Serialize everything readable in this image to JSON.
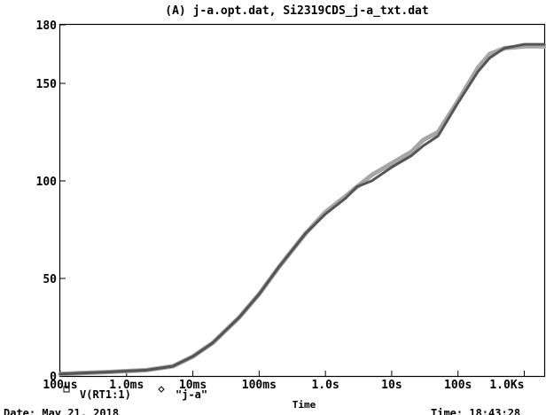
{
  "window": {
    "date_label": "Date: May 21, 2018",
    "time_label": "Time: 18:43:28"
  },
  "chart_data": {
    "type": "line",
    "title": "(A) j-a.opt.dat, Si2319CDS_j-a_txt.dat",
    "xlabel": "Time",
    "ylabel": "",
    "xscale": "log",
    "xlim_seconds": [
      0.0001,
      2000
    ],
    "ylim": [
      0,
      180
    ],
    "x_tick_values": [
      0.0001,
      0.001,
      0.01,
      0.1,
      1,
      10,
      100,
      1000
    ],
    "x_tick_labels": [
      "100us",
      "1.0ms",
      "10ms",
      "100ms",
      "1.0s",
      "10s",
      "100s",
      "1.0Ks"
    ],
    "y_tick_values": [
      0,
      50,
      100,
      150,
      180
    ],
    "y_tick_labels": [
      "0",
      "50",
      "100",
      "150",
      "180"
    ],
    "grid": false,
    "legend_position": "bottom-left",
    "series": [
      {
        "name": "V(RT1:1)",
        "marker": "square",
        "color": "#555555",
        "x": [
          0.0001,
          0.0002,
          0.0005,
          0.001,
          0.002,
          0.005,
          0.01,
          0.02,
          0.05,
          0.1,
          0.2,
          0.5,
          1,
          2,
          3,
          5,
          10,
          20,
          30,
          50,
          100,
          200,
          300,
          500,
          1000,
          2000
        ],
        "y": [
          1,
          1.5,
          2,
          2.5,
          3,
          5,
          10,
          17,
          30,
          42,
          56,
          73,
          83,
          91,
          97,
          100,
          107,
          113,
          118,
          123,
          140,
          156,
          163,
          168,
          170,
          170
        ]
      },
      {
        "name": "\"j-a\"",
        "marker": "diamond",
        "color": "#a6a6a6",
        "x": [
          0.0001,
          0.0002,
          0.0005,
          0.001,
          0.002,
          0.005,
          0.01,
          0.02,
          0.05,
          0.1,
          0.2,
          0.5,
          1,
          2,
          3,
          5,
          10,
          20,
          30,
          50,
          100,
          200,
          300,
          500,
          1000,
          2000
        ],
        "y": [
          1,
          1.5,
          2,
          2.5,
          3,
          5,
          10,
          17,
          30,
          42,
          56,
          73,
          84,
          92,
          97,
          103,
          109,
          115,
          121,
          125,
          141,
          158,
          165,
          168,
          169,
          169
        ]
      }
    ]
  }
}
